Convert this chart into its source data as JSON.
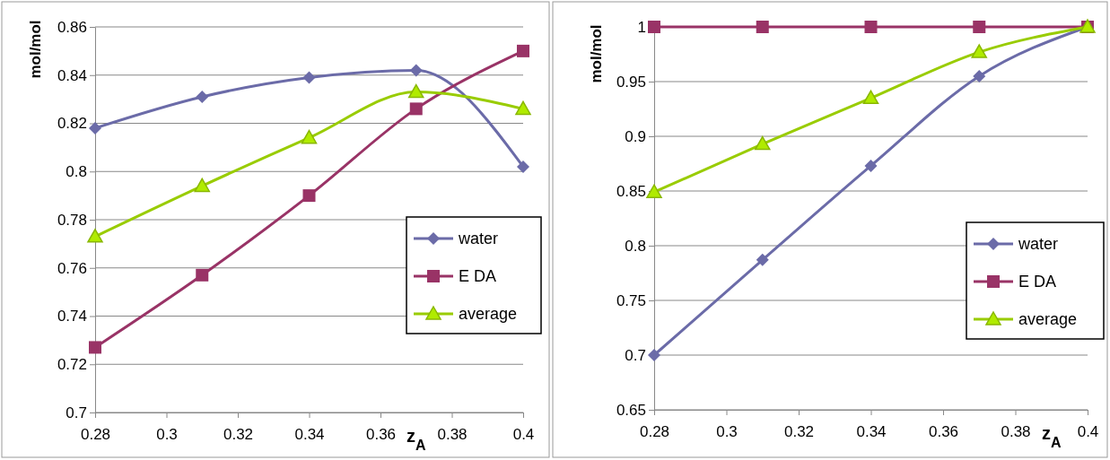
{
  "chart_data": [
    {
      "type": "line",
      "xlabel": "z$_{A}$",
      "ylabel": "mol/mol",
      "x": [
        0.28,
        0.31,
        0.34,
        0.37,
        0.4
      ],
      "xlim": [
        0.28,
        0.4
      ],
      "xticks": [
        0.28,
        0.3,
        0.32,
        0.34,
        0.36,
        0.38,
        0.4
      ],
      "ylim": [
        0.7,
        0.86
      ],
      "yticks": [
        0.7,
        0.72,
        0.74,
        0.76,
        0.78,
        0.8,
        0.82,
        0.84,
        0.86
      ],
      "grid": "y",
      "legend": "right",
      "series": [
        {
          "name": "water",
          "color": "#6b6ba8",
          "marker": "diamond",
          "values": [
            0.818,
            0.831,
            0.839,
            0.842,
            0.802
          ]
        },
        {
          "name": "E DA",
          "color": "#993366",
          "marker": "square",
          "values": [
            0.727,
            0.757,
            0.79,
            0.826,
            0.85
          ]
        },
        {
          "name": "average",
          "color": "#99cc00",
          "marker": "triangle",
          "values": [
            0.773,
            0.794,
            0.814,
            0.833,
            0.826
          ]
        }
      ]
    },
    {
      "type": "line",
      "xlabel": "z$_{A}$",
      "ylabel": "mol/mol",
      "x": [
        0.28,
        0.31,
        0.34,
        0.37,
        0.4
      ],
      "xlim": [
        0.28,
        0.4
      ],
      "xticks": [
        0.28,
        0.3,
        0.32,
        0.34,
        0.36,
        0.38,
        0.4
      ],
      "ylim": [
        0.65,
        1
      ],
      "yticks": [
        0.65,
        0.7,
        0.75,
        0.8,
        0.85,
        0.9,
        0.95,
        1
      ],
      "grid": "y",
      "legend": "right",
      "series": [
        {
          "name": "water",
          "color": "#6b6ba8",
          "marker": "diamond",
          "values": [
            0.7,
            0.787,
            0.873,
            0.955,
            1.0
          ]
        },
        {
          "name": "E DA",
          "color": "#993366",
          "marker": "square",
          "values": [
            1.0,
            1.0,
            1.0,
            1.0,
            1.0
          ]
        },
        {
          "name": "average",
          "color": "#99cc00",
          "marker": "triangle",
          "values": [
            0.849,
            0.893,
            0.935,
            0.977,
            1.0
          ]
        }
      ]
    }
  ]
}
